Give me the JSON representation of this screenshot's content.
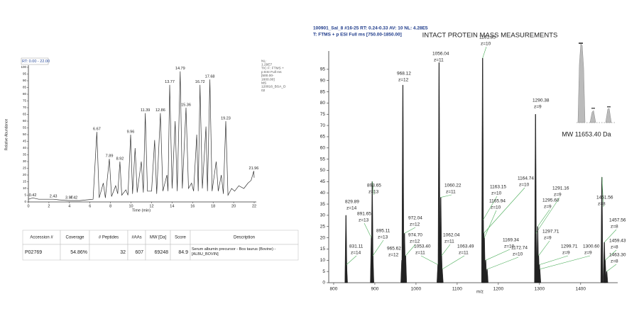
{
  "chart_data": [
    {
      "type": "line",
      "header": "RT: 0.00 - 22.00",
      "info": [
        "NL:",
        "1.29E7",
        "TIC F: FTMS +",
        "p ESI Full ms",
        "[500.00-",
        "1600.00]",
        "MS",
        "120816_BSA_D",
        "02"
      ],
      "x_label": "Time (min)",
      "y_label": "Relative Abundance",
      "xlim": [
        0,
        22
      ],
      "ylim": [
        0,
        100
      ],
      "xticks": [
        0,
        2,
        4,
        6,
        8,
        10,
        12,
        14,
        16,
        18,
        20,
        22
      ],
      "yticks": [
        0,
        5,
        10,
        15,
        20,
        25,
        30,
        35,
        40,
        45,
        50,
        55,
        60,
        65,
        70,
        75,
        80,
        85,
        90,
        95,
        100
      ],
      "series": [
        {
          "color": "#333333",
          "x": [
            0,
            0.42,
            1,
            2,
            2.43,
            3,
            3.97,
            4.42,
            5,
            6.3,
            6.67,
            6.9,
            7.3,
            7.5,
            7.89,
            8.1,
            8.5,
            8.7,
            8.92,
            9.1,
            9.5,
            9.7,
            9.96,
            10.15,
            10.4,
            10.6,
            11.0,
            11.2,
            11.39,
            11.6,
            12.0,
            12.3,
            12.5,
            12.86,
            13.1,
            13.5,
            13.6,
            13.77,
            14.0,
            14.3,
            14.5,
            14.79,
            15.0,
            15.36,
            15.6,
            15.9,
            16.1,
            16.4,
            16.55,
            16.72,
            16.95,
            17.3,
            17.45,
            17.68,
            17.9,
            18.3,
            18.5,
            18.8,
            19.0,
            19.23,
            19.45,
            19.8,
            20.1,
            20.5,
            21.0,
            21.4,
            21.7,
            21.96,
            22
          ],
          "values": [
            2,
            3,
            2,
            2,
            2,
            1.5,
            1,
            1,
            1,
            2,
            52,
            3,
            14,
            3,
            32,
            4,
            12,
            6,
            30,
            5,
            9,
            5,
            50,
            6,
            40,
            7,
            30,
            7,
            66,
            8,
            8,
            46,
            6,
            66,
            8,
            20,
            8,
            87,
            10,
            60,
            8,
            97,
            10,
            70,
            10,
            14,
            8,
            50,
            8,
            87,
            10,
            56,
            8,
            91,
            8,
            30,
            8,
            20,
            6,
            60,
            5,
            10,
            8,
            12,
            10,
            14,
            16,
            23,
            18
          ]
        }
      ],
      "peak_labels": [
        0.42,
        2.43,
        3.97,
        4.42,
        6.67,
        7.89,
        8.92,
        9.96,
        11.39,
        12.86,
        13.77,
        14.79,
        15.36,
        16.72,
        17.68,
        19.23,
        21.96
      ]
    },
    {
      "type": "spectrum",
      "header": [
        "100901_Sal_8 #16-25  RT: 0.24-0.33  AV: 10  NL: 4.28E5",
        "T: FTMS + p ESI Full ms [750.00-1850.00]"
      ],
      "title": "INTACT PROTEIN MASS MEASUREMENTS",
      "x_label": "m/z",
      "xlim": [
        788,
        1490
      ],
      "ylim": [
        0,
        100
      ],
      "xticks": [
        800,
        900,
        1000,
        1100,
        1200,
        1300,
        1400
      ],
      "yticks": [
        0,
        5,
        10,
        15,
        20,
        25,
        30,
        35,
        40,
        45,
        50,
        55,
        60,
        65,
        70,
        75,
        80,
        85,
        90,
        95
      ],
      "color": "#222222",
      "x": [
        829.89,
        831.11,
        891.65,
        893.65,
        895.11,
        965.62,
        968.12,
        972.04,
        974.7,
        1053.4,
        1056.04,
        1060.22,
        1062.04,
        1063.49,
        1161.85,
        1163.15,
        1164.74,
        1165.94,
        1169.34,
        1172.74,
        1290.38,
        1291.16,
        1295.6,
        1297.71,
        1299.71,
        1300.6,
        1451.56,
        1457.56,
        1459.43,
        1463.3
      ],
      "x_labels": [
        "829.89",
        "831.11",
        "891.65",
        "893.65",
        "895.11",
        "965.62",
        "968.12",
        "972.04",
        "974.70",
        "1053.40",
        "1056.04",
        "1060.22",
        "1062.04",
        "1063.49",
        "1161.85",
        "1163.15",
        "1164.74",
        "1165.94",
        "1169.34",
        "1172.74",
        "1290.38",
        "1291.16",
        "1295.60",
        "1297.71",
        "1299.71",
        "1300.60",
        "1451.56",
        "1457.56",
        "1459.43",
        "1463.30"
      ],
      "charges": [
        "z=14",
        "z=14",
        "z=13",
        "z=13",
        "z=13",
        "z=12",
        "z=12",
        "z=12",
        "z=12",
        "z=11",
        "z=11",
        "z=11",
        "z=11",
        "z=11",
        "z=10",
        "z=10",
        "z=10",
        "z=10",
        "z=10",
        "z=10",
        "z=9",
        "z=9",
        "z=9",
        "z=9",
        "z=9",
        "z=9",
        "z=8",
        "z=8",
        "z=8",
        "z=8"
      ],
      "values": [
        30,
        8,
        20,
        45,
        12,
        10,
        88,
        22,
        12,
        8,
        98,
        38,
        12,
        6,
        100,
        28,
        22,
        20,
        10,
        6,
        75,
        22,
        25,
        12,
        8,
        6,
        47,
        18,
        10,
        5
      ],
      "inset_label": "MW 11653.40 Da"
    }
  ],
  "table": {
    "headers": [
      "Accession #",
      "Coverage",
      "# Peptides",
      "#AAs",
      "MW [Da]",
      "Score",
      "Description"
    ],
    "rows": [
      [
        "P02769",
        "54.86%",
        "32",
        "607",
        "69248",
        "84.9",
        "Serum albumin precursor - Bos taurus (Bovine) - [ALBU_BOVIN]"
      ]
    ]
  }
}
